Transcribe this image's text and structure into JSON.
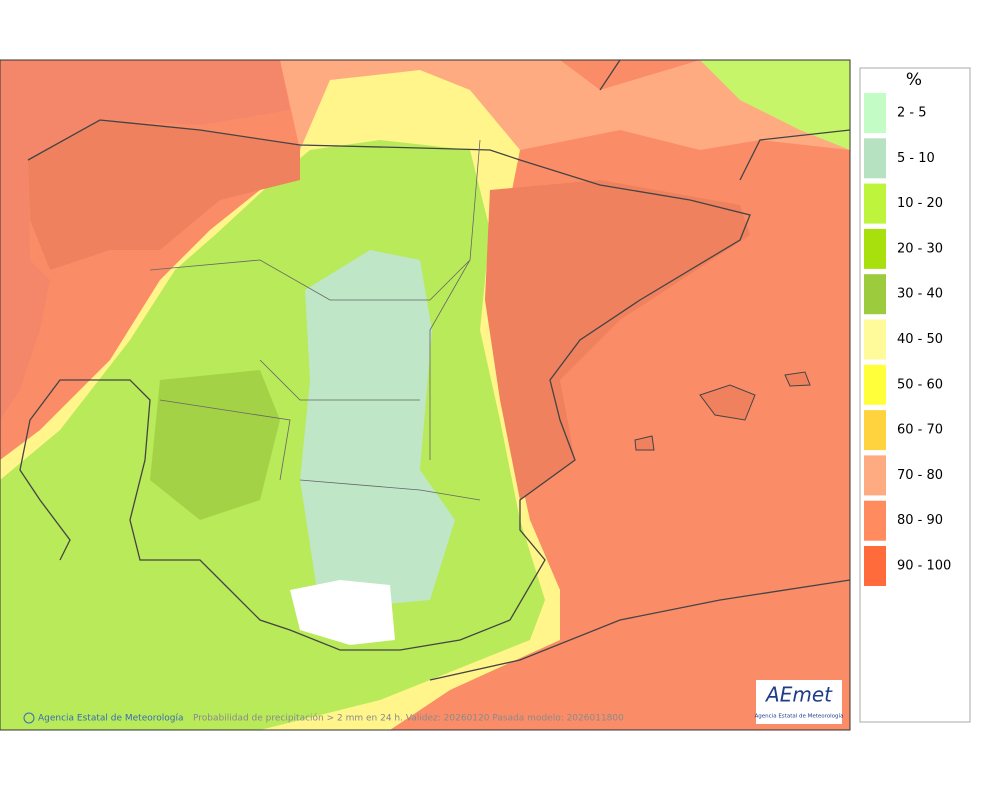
{
  "legend": {
    "title": "%",
    "items": [
      {
        "label": "2 - 5",
        "color": "#c4fcc6"
      },
      {
        "label": "5 - 10",
        "color": "#b6e2c2"
      },
      {
        "label": "10 - 20",
        "color": "#bef43c"
      },
      {
        "label": "20 - 30",
        "color": "#a8e00e"
      },
      {
        "label": "30 - 40",
        "color": "#9dcb3e"
      },
      {
        "label": "40 - 50",
        "color": "#fffa9a"
      },
      {
        "label": "50 - 60",
        "color": "#ffff3a"
      },
      {
        "label": "60 - 70",
        "color": "#ffd33e"
      },
      {
        "label": "70 - 80",
        "color": "#ffab82"
      },
      {
        "label": "80 - 90",
        "color": "#ff8b5e"
      },
      {
        "label": "90 - 100",
        "color": "#ff6b3b"
      }
    ]
  },
  "footer": {
    "credit": "Agencia Estatal de Meteorología",
    "description": "Probabilidad de precipitación > 2 mm en 24 h. Validez: 20260120 Pasada modelo: 2026011800"
  },
  "logo": {
    "name": "AEmet",
    "subtitle": "Agencia Estatal de Meteorología"
  }
}
